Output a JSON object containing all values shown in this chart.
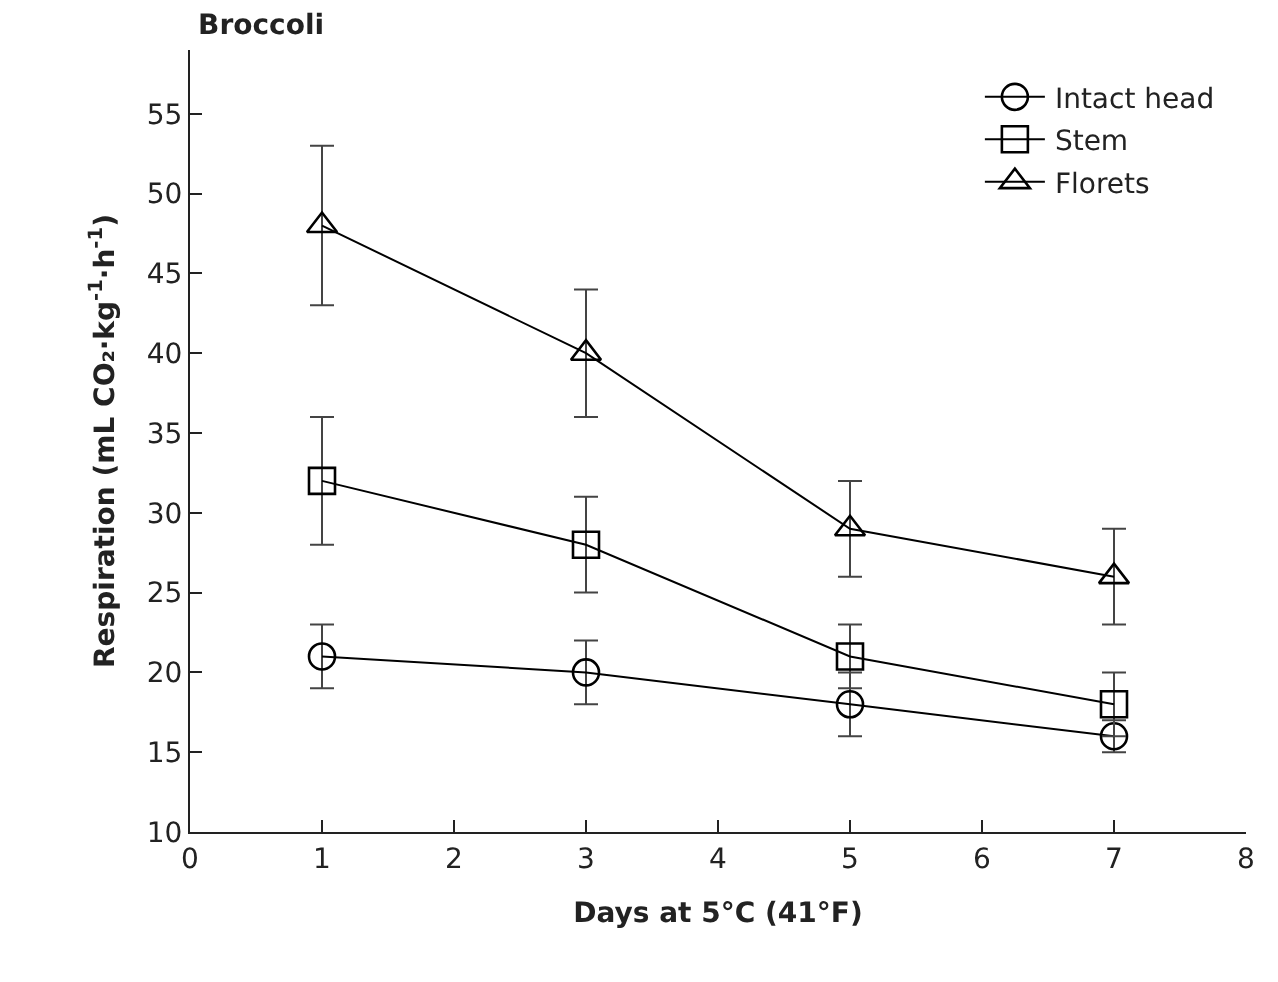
{
  "chart_data": {
    "type": "line",
    "title": "Broccoli",
    "xlabel": "Days at 5°C (41°F)",
    "ylabel": "Respiration (mL CO₂·kg$^{-1}$·h$^{-1}$)",
    "x": [
      1,
      3,
      5,
      7
    ],
    "series": [
      {
        "name": "Intact head",
        "color": "#000000",
        "marker": "circle",
        "values": [
          21,
          20,
          18,
          16
        ],
        "errors": [
          2,
          2,
          2,
          1
        ]
      },
      {
        "name": "Stem",
        "color": "#000000",
        "marker": "square",
        "values": [
          32,
          28,
          21,
          18
        ],
        "errors": [
          4,
          3,
          2,
          2
        ]
      },
      {
        "name": "Florets",
        "color": "#000000",
        "marker": "triangle",
        "values": [
          48,
          40,
          29,
          26
        ],
        "errors": [
          5,
          4,
          3,
          3
        ]
      }
    ],
    "xlim": [
      0,
      8
    ],
    "xticks": [
      0,
      1,
      2,
      3,
      4,
      5,
      6,
      7,
      8
    ],
    "ylim": [
      10,
      59
    ],
    "yticks": [
      10,
      15,
      20,
      25,
      30,
      35,
      40,
      45,
      50,
      55
    ],
    "grid": false,
    "legend": "top right",
    "line_style": "solid"
  }
}
